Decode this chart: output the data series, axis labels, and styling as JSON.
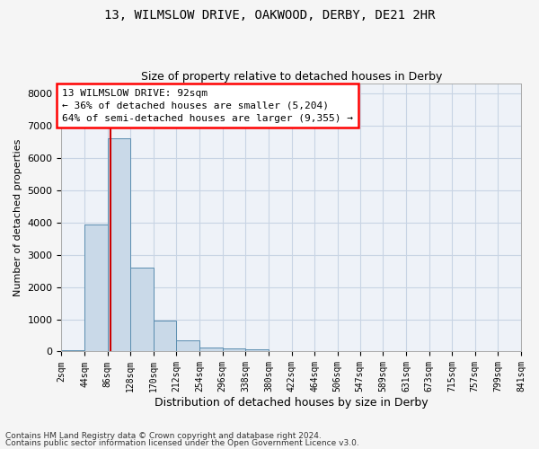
{
  "title1": "13, WILMSLOW DRIVE, OAKWOOD, DERBY, DE21 2HR",
  "title2": "Size of property relative to detached houses in Derby",
  "xlabel": "Distribution of detached houses by size in Derby",
  "ylabel": "Number of detached properties",
  "property_size": 92,
  "annotation_line1": "13 WILMSLOW DRIVE: 92sqm",
  "annotation_line2": "← 36% of detached houses are smaller (5,204)",
  "annotation_line3": "64% of semi-detached houses are larger (9,355) →",
  "bar_color": "#c9d9e8",
  "bar_edge_color": "#5a8db0",
  "vline_color": "#cc0000",
  "grid_color": "#c8d4e4",
  "bg_color": "#eef2f8",
  "fig_color": "#f5f5f5",
  "footnote1": "Contains HM Land Registry data © Crown copyright and database right 2024.",
  "footnote2": "Contains public sector information licensed under the Open Government Licence v3.0.",
  "bin_edges": [
    2,
    44,
    86,
    128,
    170,
    212,
    254,
    296,
    338,
    380,
    422,
    464,
    506,
    547,
    589,
    631,
    673,
    715,
    757,
    799,
    841
  ],
  "bin_counts": [
    50,
    3950,
    6600,
    2600,
    950,
    350,
    130,
    100,
    60,
    0,
    0,
    0,
    0,
    0,
    0,
    0,
    0,
    0,
    0,
    0
  ],
  "ylim": [
    0,
    8300
  ],
  "yticks": [
    0,
    1000,
    2000,
    3000,
    4000,
    5000,
    6000,
    7000,
    8000
  ]
}
